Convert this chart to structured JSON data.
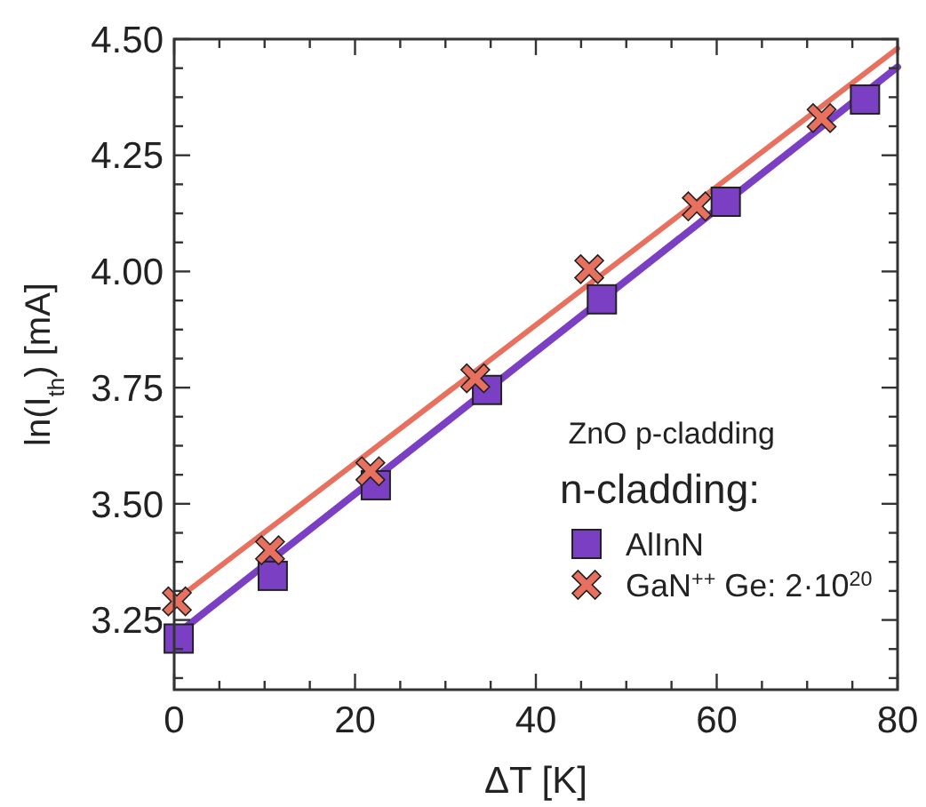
{
  "chart_data": {
    "type": "scatter",
    "xlabel": "ΔT [K]",
    "ylabel": "ln(I$_{th}$) [mA]",
    "legend_title": "n-cladding:",
    "annotations": [
      "ZnO p-cladding"
    ],
    "legend": "bottom right",
    "grid": false,
    "xlim": [
      0,
      80
    ],
    "ylim": [
      3.1,
      4.5
    ],
    "xticks": [
      0,
      {
        "value": 5,
        "label": null
      },
      {
        "value": 10,
        "label": null
      },
      {
        "value": 15,
        "label": null
      },
      20,
      {
        "value": 25,
        "label": null
      },
      {
        "value": 30,
        "label": null
      },
      {
        "value": 35,
        "label": null
      },
      40,
      {
        "value": 45,
        "label": null
      },
      {
        "value": 50,
        "label": null
      },
      {
        "value": 55,
        "label": null
      },
      60,
      {
        "value": 65,
        "label": null
      },
      {
        "value": 70,
        "label": null
      },
      {
        "value": 75,
        "label": null
      },
      80
    ],
    "yticks": [
      {
        "value": 3.125,
        "label": null
      },
      {
        "value": 3.1875,
        "label": null
      },
      {
        "value": 3.25,
        "label": "3.25"
      },
      {
        "value": 3.3125,
        "label": null
      },
      {
        "value": 3.375,
        "label": null
      },
      {
        "value": 3.4375,
        "label": null
      },
      {
        "value": 3.5,
        "label": "3.50"
      },
      {
        "value": 3.5625,
        "label": null
      },
      {
        "value": 3.625,
        "label": null
      },
      {
        "value": 3.6875,
        "label": null
      },
      {
        "value": 3.75,
        "label": "3.75"
      },
      {
        "value": 3.8125,
        "label": null
      },
      {
        "value": 3.875,
        "label": null
      },
      {
        "value": 3.9375,
        "label": null
      },
      {
        "value": 4,
        "label": "4.00"
      },
      {
        "value": 4.0625,
        "label": null
      },
      {
        "value": 4.125,
        "label": null
      },
      {
        "value": 4.1875,
        "label": null
      },
      {
        "value": 4.25,
        "label": "4.25"
      },
      {
        "value": 4.3125,
        "label": null
      },
      {
        "value": 4.375,
        "label": null
      },
      {
        "value": 4.4375,
        "label": null
      },
      {
        "value": 4.5,
        "label": "4.50"
      }
    ],
    "series": [
      {
        "type": "line",
        "color": "#e8705f",
        "marker": "none",
        "x": [
          0,
          80
        ],
        "values": [
          3.29,
          4.48
        ]
      },
      {
        "type": "line",
        "color": "#7b3fc4",
        "marker": "none",
        "x": [
          0,
          80
        ],
        "values": [
          3.215,
          4.44
        ]
      },
      {
        "name": "AlInN",
        "color": "#7b3fc4",
        "marker": "square",
        "x": [
          0.5,
          10.9,
          22.3,
          34.6,
          47.3,
          61,
          76.4
        ],
        "values": [
          3.21,
          3.345,
          3.54,
          3.745,
          3.94,
          4.15,
          4.37
        ]
      },
      {
        "name": "GaN$^{++}$ Ge: 2·10$^{20}$",
        "color": "#e8705f",
        "marker": "cross",
        "x": [
          0.3,
          10.6,
          21.7,
          33.3,
          45.9,
          57.8,
          71.6
        ],
        "values": [
          3.29,
          3.4,
          3.57,
          3.77,
          4.005,
          4.14,
          4.33
        ]
      }
    ]
  }
}
